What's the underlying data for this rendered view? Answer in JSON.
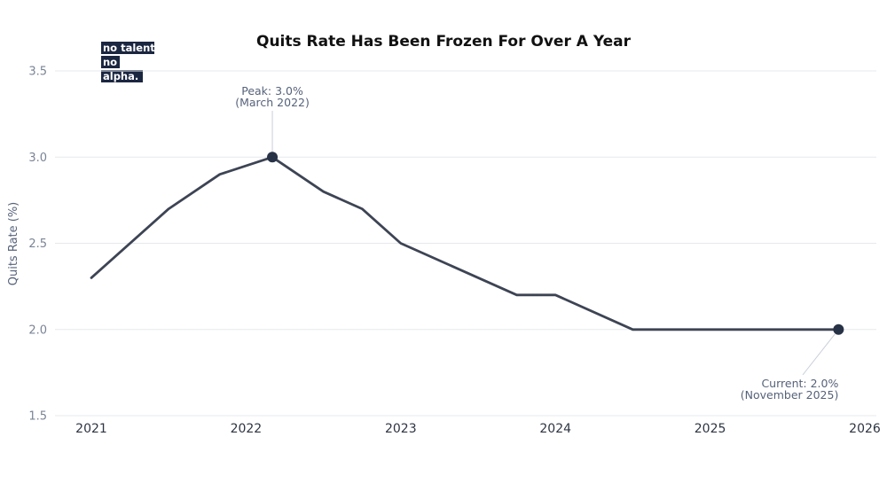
{
  "chart_data": {
    "type": "line",
    "title": "Quits Rate Has Been Frozen For Over A Year",
    "ylabel": "Quits Rate (%)",
    "xlabel": "",
    "ylim": [
      1.5,
      3.6
    ],
    "yticks": [
      1.5,
      2.0,
      2.5,
      3.0,
      3.5
    ],
    "ytick_labels": [
      "1.5",
      "2.0",
      "2.5",
      "3.0",
      "3.5"
    ],
    "xlim": [
      2021,
      2026
    ],
    "xticks": [
      2021,
      2022,
      2023,
      2024,
      2025,
      2026
    ],
    "xtick_labels": [
      "2021",
      "2022",
      "2023",
      "2024",
      "2025",
      "2026"
    ],
    "grid": true,
    "line_color": "#3d4454",
    "marker_color": "#273246",
    "series": [
      {
        "x": [
          2021.0,
          2021.5,
          2021.83,
          2022.17,
          2022.5,
          2022.75,
          2023.0,
          2023.75,
          2024.0,
          2024.5,
          2025.0,
          2025.83
        ],
        "values": [
          2.3,
          2.7,
          2.9,
          3.0,
          2.8,
          2.7,
          2.5,
          2.2,
          2.2,
          2.0,
          2.0,
          2.0
        ]
      }
    ],
    "annotations": [
      {
        "line1": "Peak: 3.0%",
        "line2": "(March 2022)",
        "x": 2022.17,
        "y": 3.0
      },
      {
        "line1": "Current: 2.0%",
        "line2": "(November 2025)",
        "x": 2025.83,
        "y": 2.0
      }
    ]
  },
  "logo": {
    "lines": [
      "no talent",
      "no",
      "alpha."
    ],
    "background_color": "#1b2640"
  }
}
